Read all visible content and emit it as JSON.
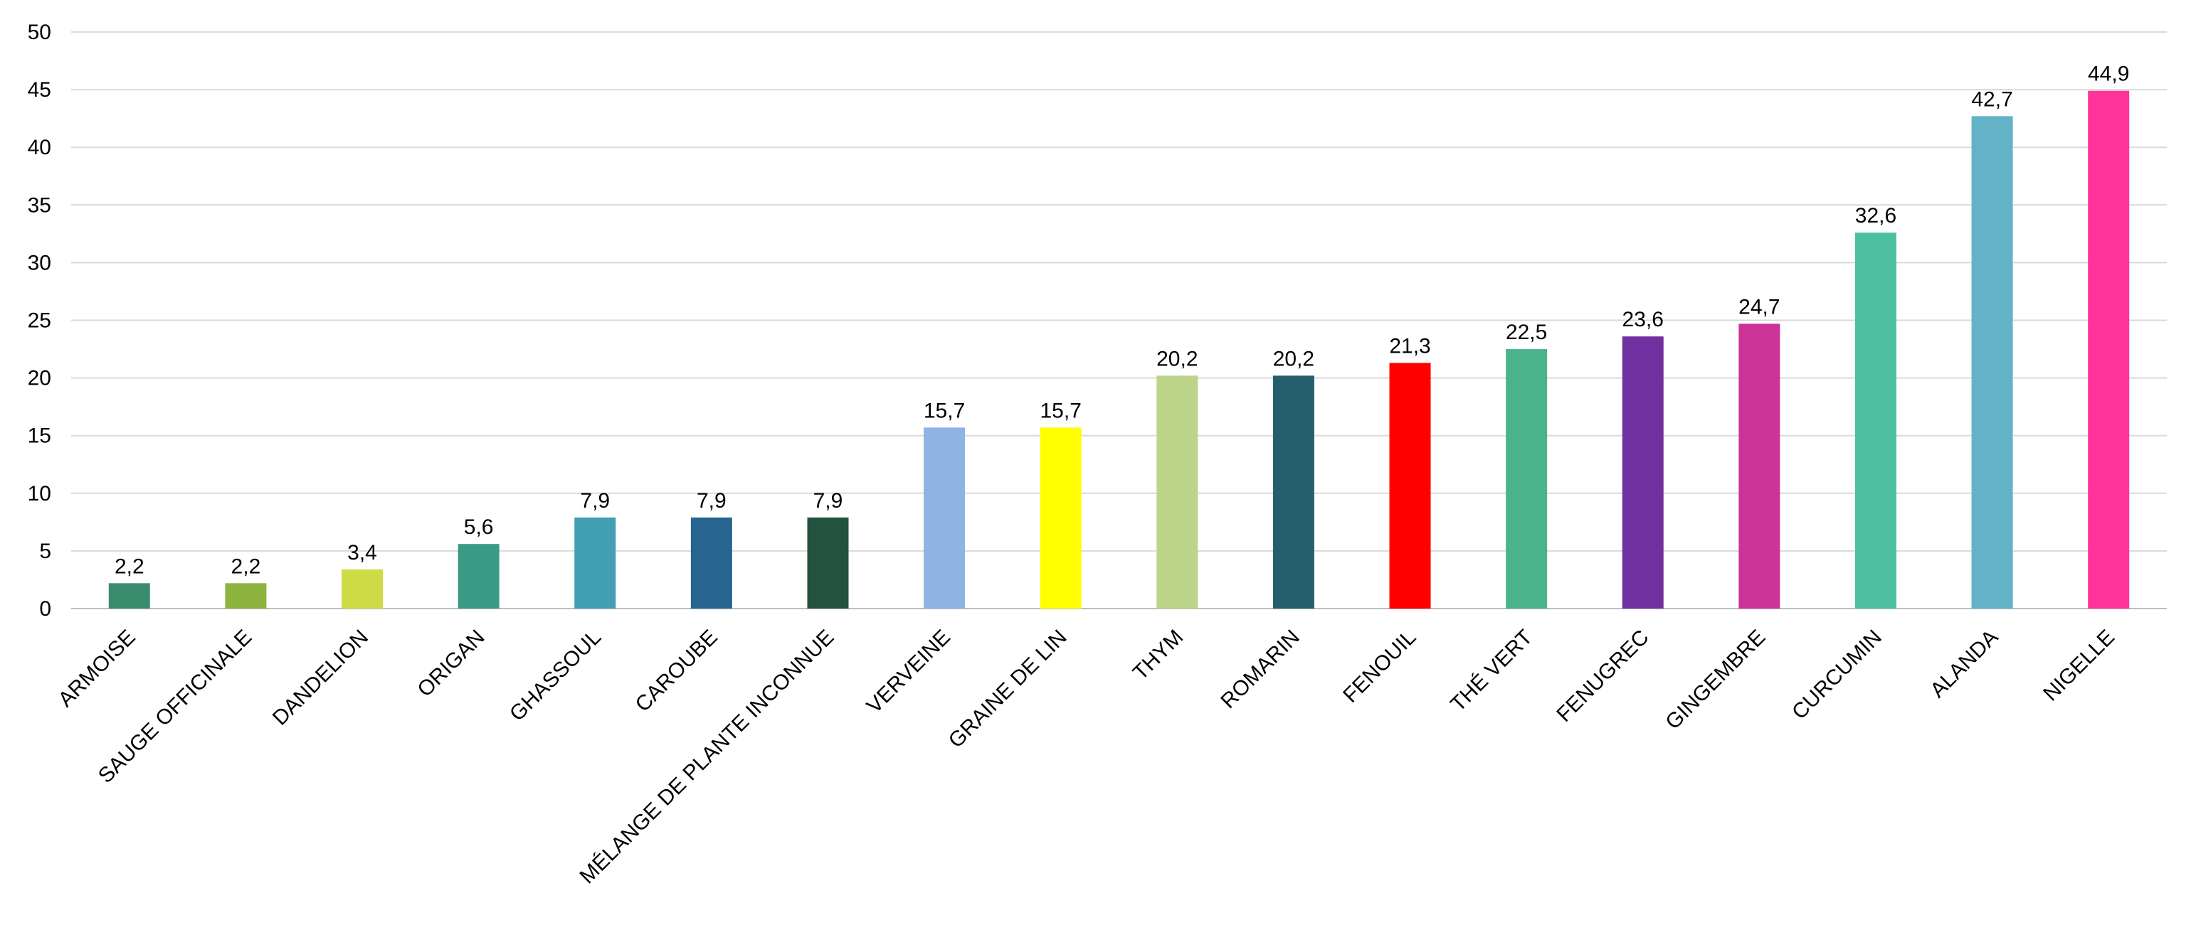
{
  "chart_data": {
    "type": "bar",
    "title": "",
    "xlabel": "",
    "ylabel": "",
    "ylim": [
      0,
      50
    ],
    "yticks": [
      0,
      5,
      10,
      15,
      20,
      25,
      30,
      35,
      40,
      45,
      50
    ],
    "grid": true,
    "legend": "none",
    "decimal_separator": ",",
    "categories": [
      "ARMOISE",
      "SAUGE OFFICINALE",
      "DANDELION",
      "ORIGAN",
      "GHASSOUL",
      "CAROUBE",
      "MÉLANGE DE PLANTE INCONNUE",
      "VERVEINE",
      "GRAINE DE LIN",
      "THYM",
      "ROMARIN",
      "FENOUIL",
      "THÉ VERT",
      "FENUGREC",
      "GINGEMBRE",
      "CURCUMIN",
      "ALANDA",
      "NIGELLE"
    ],
    "values": [
      2.2,
      2.2,
      3.4,
      5.6,
      7.9,
      7.9,
      7.9,
      15.7,
      15.7,
      20.2,
      20.2,
      21.3,
      22.5,
      23.6,
      24.7,
      32.6,
      42.7,
      44.9
    ],
    "data_labels": [
      "2,2",
      "2,2",
      "3,4",
      "5,6",
      "7,9",
      "7,9",
      "7,9",
      "15,7",
      "15,7",
      "20,2",
      "20,2",
      "21,3",
      "22,5",
      "23,6",
      "24,7",
      "32,6",
      "42,7",
      "44,9"
    ],
    "colors": [
      "#3A8C6E",
      "#8DB33F",
      "#CDDC45",
      "#3A9A86",
      "#429FB4",
      "#27648F",
      "#23523F",
      "#8EB4E3",
      "#FFFF00",
      "#BDD58B",
      "#255F6B",
      "#FF0000",
      "#4BB38C",
      "#7030A0",
      "#CC3399",
      "#4EC0A2",
      "#62B2C8",
      "#FF3399"
    ]
  }
}
